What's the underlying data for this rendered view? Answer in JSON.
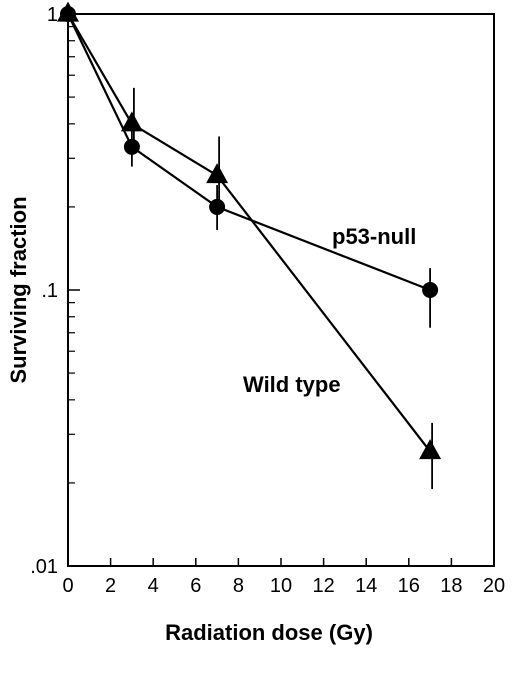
{
  "chart_data": {
    "type": "line",
    "xlabel": "Radiation dose (Gy)",
    "ylabel": "Surviving fraction",
    "xlim": [
      0,
      20
    ],
    "ylim": [
      0.01,
      1
    ],
    "y_scale": "log",
    "grid": false,
    "x_ticks": [
      "0",
      "2",
      "4",
      "6",
      "8",
      "10",
      "12",
      "14",
      "16",
      "18",
      "20"
    ],
    "y_ticks": [
      {
        "value": 1,
        "label": "1"
      },
      {
        "value": 0.1,
        "label": ".1"
      },
      {
        "value": 0.01,
        "label": ".01"
      }
    ],
    "series": [
      {
        "name": "p53-null",
        "marker": "circle",
        "x": [
          0,
          3,
          7,
          17
        ],
        "y": [
          1.0,
          0.33,
          0.2,
          0.1
        ],
        "err_upper": [
          null,
          0.4,
          0.24,
          0.12
        ],
        "err_lower": [
          null,
          0.28,
          0.165,
          0.073
        ]
      },
      {
        "name": "Wild type",
        "marker": "triangle",
        "x": [
          0,
          3,
          7,
          17
        ],
        "y": [
          1.0,
          0.4,
          0.26,
          0.026
        ],
        "err_upper": [
          null,
          0.54,
          0.36,
          0.033
        ],
        "err_lower": [
          null,
          0.33,
          0.2,
          0.019
        ]
      }
    ]
  }
}
